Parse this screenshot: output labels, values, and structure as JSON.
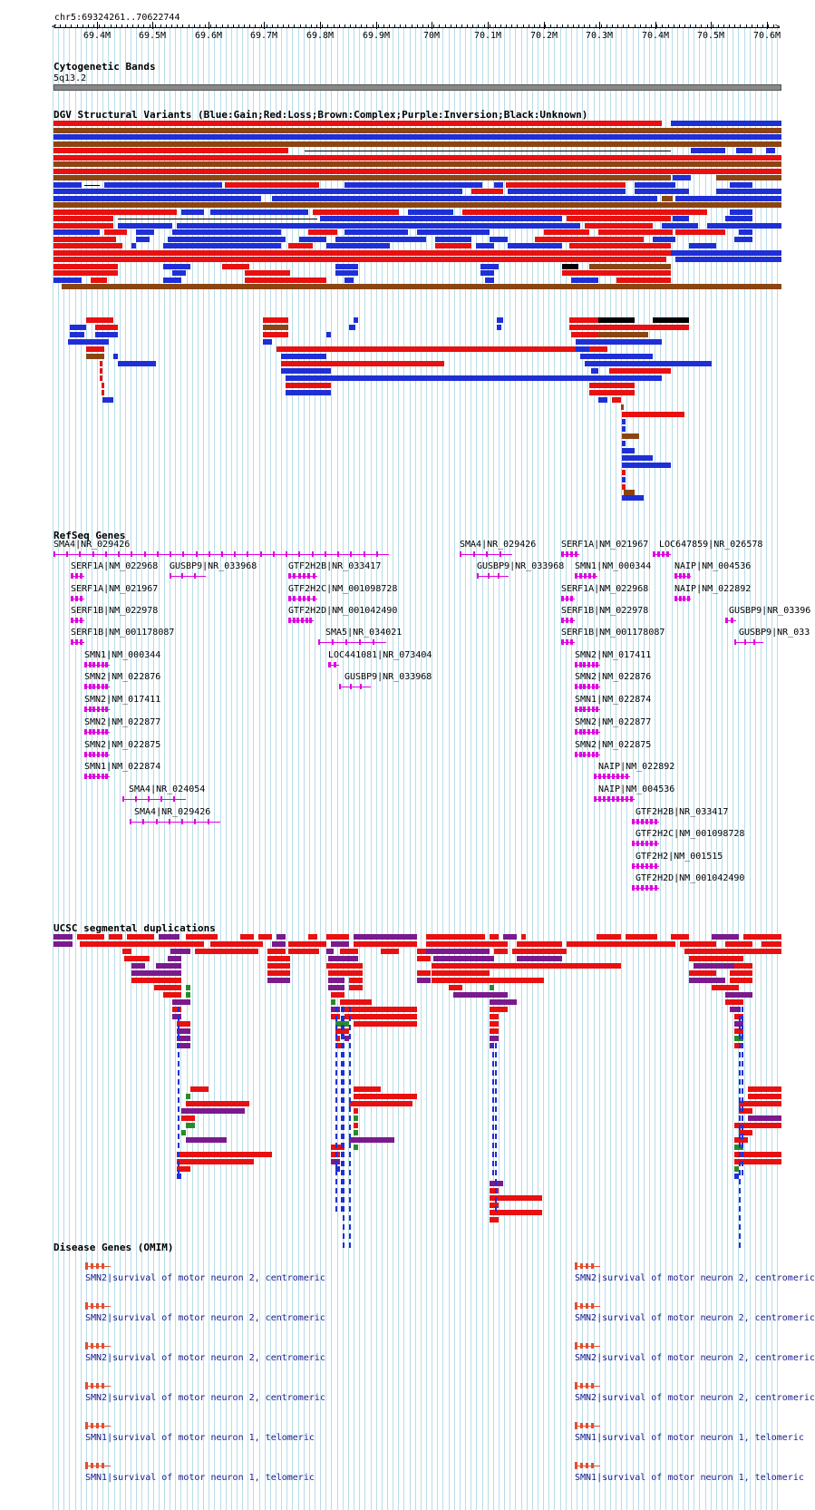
{
  "ruler": {
    "location": "chr5:69324261..70622744",
    "ticks": [
      {
        "label": "69.4M",
        "bp": 69400000
      },
      {
        "label": "69.5M",
        "bp": 69500000
      },
      {
        "label": "69.6M",
        "bp": 69600000
      },
      {
        "label": "69.7M",
        "bp": 69700000
      },
      {
        "label": "69.8M",
        "bp": 69800000
      },
      {
        "label": "69.9M",
        "bp": 69900000
      },
      {
        "label": "70M",
        "bp": 70000000
      },
      {
        "label": "70.1M",
        "bp": 70100000
      },
      {
        "label": "70.2M",
        "bp": 70200000
      },
      {
        "label": "70.3M",
        "bp": 70300000
      },
      {
        "label": "70.4M",
        "bp": 70400000
      },
      {
        "label": "70.5M",
        "bp": 70500000
      },
      {
        "label": "70.6M",
        "bp": 70600000
      }
    ]
  },
  "tracks": {
    "cytoband": {
      "title": "Cytogenetic Bands",
      "band": "5q13.2"
    },
    "dgv": {
      "title": "DGV Structural Variants (Blue:Gain;Red:Loss;Brown:Complex;Purple:Inversion;Black:Unknown)"
    },
    "refseq": {
      "title": "RefSeq Genes"
    },
    "segdup": {
      "title": "UCSC segmental duplications"
    },
    "omim": {
      "title": "Disease Genes (OMIM)"
    }
  },
  "colors": {
    "gain": "#1f2fd6",
    "loss": "#e81010",
    "complex": "#8b4513",
    "inversion": "#7a1a8c",
    "unknown": "#000000",
    "gene": "#e000e0",
    "segdup_green": "#2a8a2a",
    "omim": "#e05030",
    "grid": "#b8dce8"
  },
  "refseq_genes": [
    {
      "label": "SMA4|NR_029426"
    },
    {
      "label": "SERF1A|NM_022968"
    },
    {
      "label": "GUSBP9|NR_033968"
    },
    {
      "label": "SERF1A|NM_021967"
    },
    {
      "label": "SERF1B|NM_022978"
    },
    {
      "label": "SERF1B|NM_001178087"
    },
    {
      "label": "SMN1|NM_000344"
    },
    {
      "label": "SMN2|NM_022876"
    },
    {
      "label": "SMN2|NM_017411"
    },
    {
      "label": "SMN2|NM_022877"
    },
    {
      "label": "SMN2|NM_022875"
    },
    {
      "label": "SMN1|NM_022874"
    },
    {
      "label": "SMA4|NR_024054"
    },
    {
      "label": "SMA4|NR_029426"
    },
    {
      "label": "GTF2H2B|NR_033417"
    },
    {
      "label": "GTF2H2C|NM_001098728"
    },
    {
      "label": "GTF2H2D|NM_001042490"
    },
    {
      "label": "SMA5|NR_034021"
    },
    {
      "label": "LOC441081|NR_073404"
    },
    {
      "label": "GUSBP9|NR_033968"
    },
    {
      "label": "SMA4|NR_029426"
    },
    {
      "label": "GUSBP9|NR_033968"
    },
    {
      "label": "SERF1A|NM_021967"
    },
    {
      "label": "SMN1|NM_000344"
    },
    {
      "label": "SERF1A|NM_022968"
    },
    {
      "label": "SERF1B|NM_022978"
    },
    {
      "label": "SERF1B|NM_001178087"
    },
    {
      "label": "SMN2|NM_017411"
    },
    {
      "label": "SMN2|NM_022876"
    },
    {
      "label": "SMN1|NM_022874"
    },
    {
      "label": "SMN2|NM_022877"
    },
    {
      "label": "SMN2|NM_022875"
    },
    {
      "label": "NAIP|NM_022892"
    },
    {
      "label": "NAIP|NM_004536"
    },
    {
      "label": "GTF2H2B|NR_033417"
    },
    {
      "label": "GTF2H2C|NM_001098728"
    },
    {
      "label": "GTF2H2|NM_001515"
    },
    {
      "label": "GTF2H2D|NM_001042490"
    },
    {
      "label": "LOC647859|NR_026578"
    },
    {
      "label": "NAIP|NM_004536"
    },
    {
      "label": "NAIP|NM_022892"
    },
    {
      "label": "GUSBP9|NR_03396"
    },
    {
      "label": "GUSBP9|NR_033"
    }
  ],
  "omim_genes": [
    {
      "label": "SMN2|survival of motor neuron 2, centromeric"
    },
    {
      "label": "SMN2|survival of motor neuron 2, centromeric"
    },
    {
      "label": "SMN2|survival of motor neuron 2, centromeric"
    },
    {
      "label": "SMN2|survival of motor neuron 2, centromeric"
    },
    {
      "label": "SMN1|survival of motor neuron 1, telomeric"
    },
    {
      "label": "SMN1|survival of motor neuron 1, telomeric"
    },
    {
      "label": "SMN2|survival of motor neuron 2, centromeric"
    },
    {
      "label": "SMN2|survival of motor neuron 2, centromeric"
    },
    {
      "label": "SMN2|survival of motor neuron 2, centromeric"
    },
    {
      "label": "SMN2|survival of motor neuron 2, centromeric"
    },
    {
      "label": "SMN1|survival of motor neuron 1, telomeric"
    },
    {
      "label": "SMN1|survival of motor neuron 1, telomeric"
    }
  ]
}
